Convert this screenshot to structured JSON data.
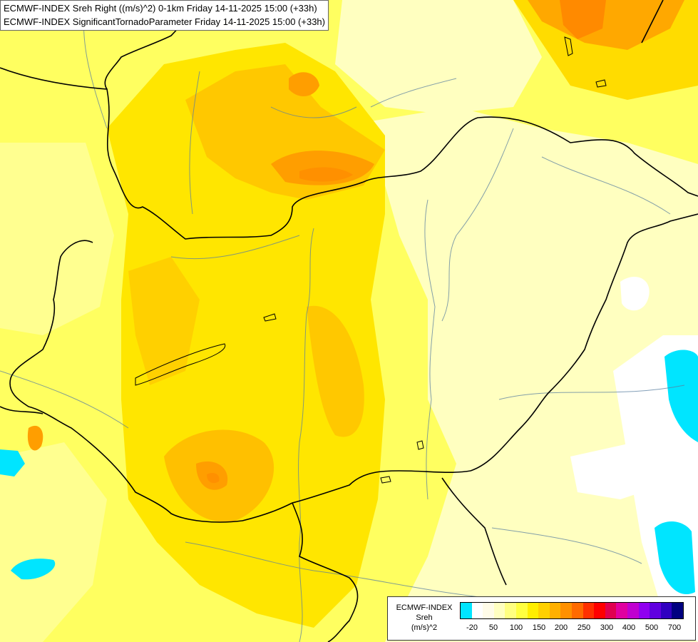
{
  "titles": {
    "line1": "ECMWF-INDEX Sreh Right ((m/s)^2) 0-1km Friday 14-11-2025 15:00 (+33h)",
    "line2": "ECMWF-INDEX SignificantTornadoParameter Friday 14-11-2025 15:00 (+33h)"
  },
  "legend": {
    "line1": "ECMWF-INDEX",
    "line2": "Sreh",
    "line3": "(m/s)^2",
    "colors": [
      "#00e5ff",
      "#ffffff",
      "#fffce8",
      "#ffffc0",
      "#ffff80",
      "#ffff40",
      "#ffee00",
      "#ffd000",
      "#ffb000",
      "#ff9000",
      "#ff6a00",
      "#ff3000",
      "#ff0000",
      "#e00050",
      "#e000a0",
      "#c000d0",
      "#9000f0",
      "#6000e0",
      "#3000c0",
      "#000080"
    ],
    "ticks": [
      "-20",
      "50",
      "100",
      "150",
      "200",
      "250",
      "300",
      "400",
      "500",
      "700"
    ]
  },
  "field_colors": {
    "pale": "#ffffc0",
    "light": "#ffff80",
    "yellow": "#ffff40",
    "gold": "#ffee00",
    "orange_light": "#ffd000",
    "orange": "#ffb000",
    "orange_dark": "#ff9000",
    "cyan": "#00e5ff",
    "white": "#ffffff"
  }
}
